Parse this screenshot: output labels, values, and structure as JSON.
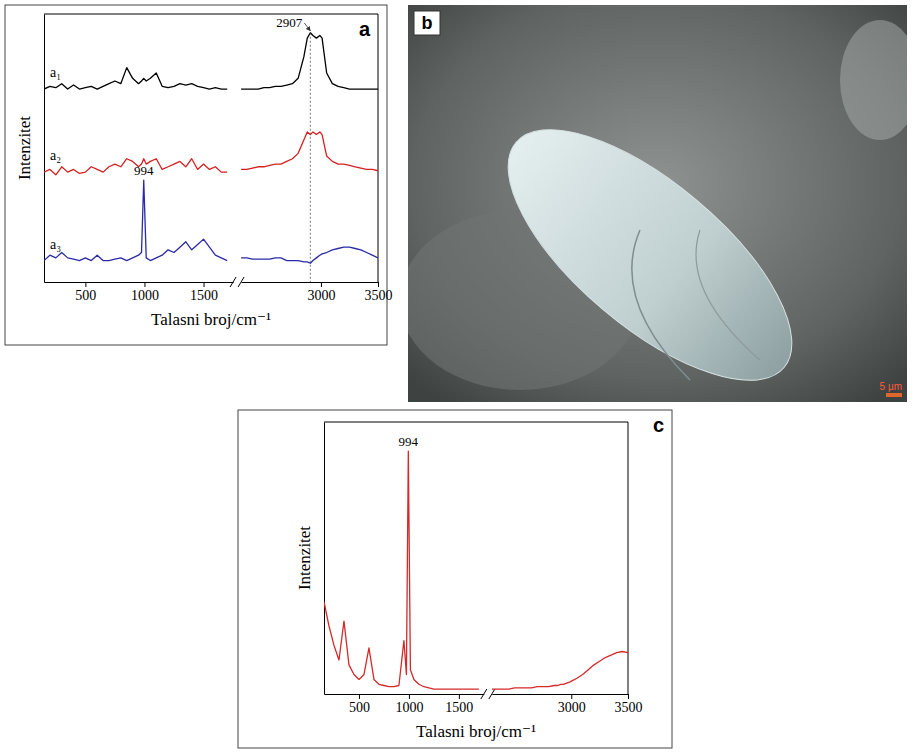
{
  "chart_data": [
    {
      "type": "line",
      "title": "a",
      "x_label": "Talasni broj/cm⁻¹",
      "y_label": "Intenzitet",
      "x": [
        150,
        200,
        250,
        300,
        350,
        400,
        450,
        500,
        550,
        600,
        650,
        700,
        750,
        800,
        850,
        900,
        950,
        975,
        994,
        1015,
        1050,
        1100,
        1150,
        1200,
        1250,
        1300,
        1350,
        1400,
        1450,
        1500,
        1550,
        1600,
        1650,
        1700,
        2000,
        2300,
        2350,
        2400,
        2450,
        2500,
        2550,
        2600,
        2650,
        2700,
        2750,
        2800,
        2850,
        2880,
        2907,
        2930,
        2960,
        2990,
        3010,
        3050,
        3100,
        3150,
        3200,
        3250,
        3300,
        3350,
        3400,
        3450,
        3500
      ],
      "series": [
        {
          "name": "a₁",
          "color": "#000000",
          "values": [
            72,
            73,
            72.5,
            74,
            72,
            73.5,
            72,
            72.5,
            73,
            72,
            73,
            74,
            75,
            74,
            80,
            76,
            74,
            75,
            76,
            75,
            76,
            78,
            73,
            72.5,
            73,
            74,
            73.5,
            74,
            73,
            72.5,
            72,
            72.5,
            72,
            72,
            null,
            72,
            72,
            72,
            72,
            72.5,
            72.5,
            73,
            73,
            73.5,
            74,
            76,
            84,
            91,
            93,
            92,
            91,
            92,
            91,
            78,
            74,
            73,
            72.5,
            72,
            72,
            72,
            72,
            72,
            72
          ]
        },
        {
          "name": "a₂",
          "color": "#d42020",
          "values": [
            41,
            42,
            40,
            43,
            41,
            42,
            40.5,
            41,
            43,
            42,
            41,
            43,
            44,
            43,
            46,
            45,
            43,
            44,
            46,
            44,
            45,
            46,
            42,
            43,
            44,
            45,
            43,
            46,
            42,
            44,
            42,
            43,
            41,
            41,
            null,
            42,
            42,
            42.5,
            43,
            43,
            43.5,
            44,
            44,
            45,
            46,
            48,
            53,
            56,
            55,
            56,
            55,
            56,
            55,
            47,
            45,
            44,
            44,
            43.5,
            43,
            42.5,
            42,
            42,
            41.5
          ]
        },
        {
          "name": "a₃",
          "color": "#2a2aa8",
          "values": [
            8,
            10,
            9,
            11,
            9,
            8.5,
            8,
            9,
            8,
            10,
            8,
            8,
            8.5,
            9,
            8,
            9,
            10,
            11,
            38,
            9,
            8,
            9,
            10,
            12,
            11,
            13,
            15,
            12,
            14,
            16,
            13,
            10,
            9,
            8,
            null,
            9,
            9,
            8.5,
            8.5,
            8.5,
            8.5,
            9,
            9,
            8,
            8,
            8,
            7.5,
            7.5,
            7,
            8,
            9,
            10,
            10.5,
            11,
            12,
            12.5,
            13,
            13,
            12.5,
            12,
            11,
            10,
            9
          ]
        }
      ],
      "xlim": [
        [
          150,
          1750
        ],
        [
          2300,
          3500
        ]
      ],
      "xticks": [
        500,
        1000,
        1500,
        3000,
        3500
      ],
      "ylim": [
        0,
        100
      ],
      "tick_labels": "x",
      "annotations": [
        {
          "text": "2907",
          "x": 2907,
          "y": 93,
          "line_style": "dashed"
        },
        {
          "text": "994",
          "x": 994,
          "y": 38
        }
      ]
    },
    {
      "type": "line",
      "title": "c",
      "x_label": "Talasni broj/cm⁻¹",
      "y_label": "Intenzitet",
      "x": [
        150,
        200,
        250,
        300,
        350,
        400,
        450,
        500,
        550,
        600,
        650,
        700,
        750,
        800,
        850,
        900,
        950,
        975,
        994,
        1015,
        1050,
        1100,
        1150,
        1200,
        1250,
        1300,
        1350,
        1400,
        1450,
        1500,
        1550,
        1600,
        1650,
        1700,
        2000,
        2300,
        2350,
        2400,
        2450,
        2500,
        2550,
        2600,
        2650,
        2700,
        2750,
        2800,
        2850,
        2880,
        2907,
        2930,
        2960,
        2990,
        3010,
        3050,
        3100,
        3150,
        3200,
        3250,
        3300,
        3350,
        3400,
        3450,
        3500
      ],
      "series": [
        {
          "color": "#d42a2a",
          "values": [
            38,
            28,
            20,
            14,
            30,
            12,
            8,
            6,
            8,
            19,
            6,
            4,
            3.5,
            3,
            3,
            3.5,
            22,
            8,
            100,
            10,
            6,
            4,
            3,
            2.5,
            2,
            2,
            2,
            2,
            2,
            2,
            2,
            2,
            2,
            2,
            null,
            2,
            2,
            2,
            2,
            2.5,
            2.5,
            2.5,
            2.5,
            3,
            3,
            3,
            3.5,
            3.5,
            4,
            4,
            4.5,
            5,
            5.5,
            6.5,
            8,
            10,
            12,
            13.5,
            15,
            16,
            17,
            17.5,
            17
          ]
        }
      ],
      "xlim": [
        [
          150,
          1750
        ],
        [
          2300,
          3500
        ]
      ],
      "xticks": [
        500,
        1000,
        1500,
        3000,
        3500
      ],
      "ylim": [
        0,
        112
      ],
      "tick_labels": "x",
      "annotations": [
        {
          "text": "994",
          "x": 994,
          "y": 100
        }
      ]
    }
  ],
  "image": {
    "label": "b",
    "scale_bar": "5 µm"
  }
}
